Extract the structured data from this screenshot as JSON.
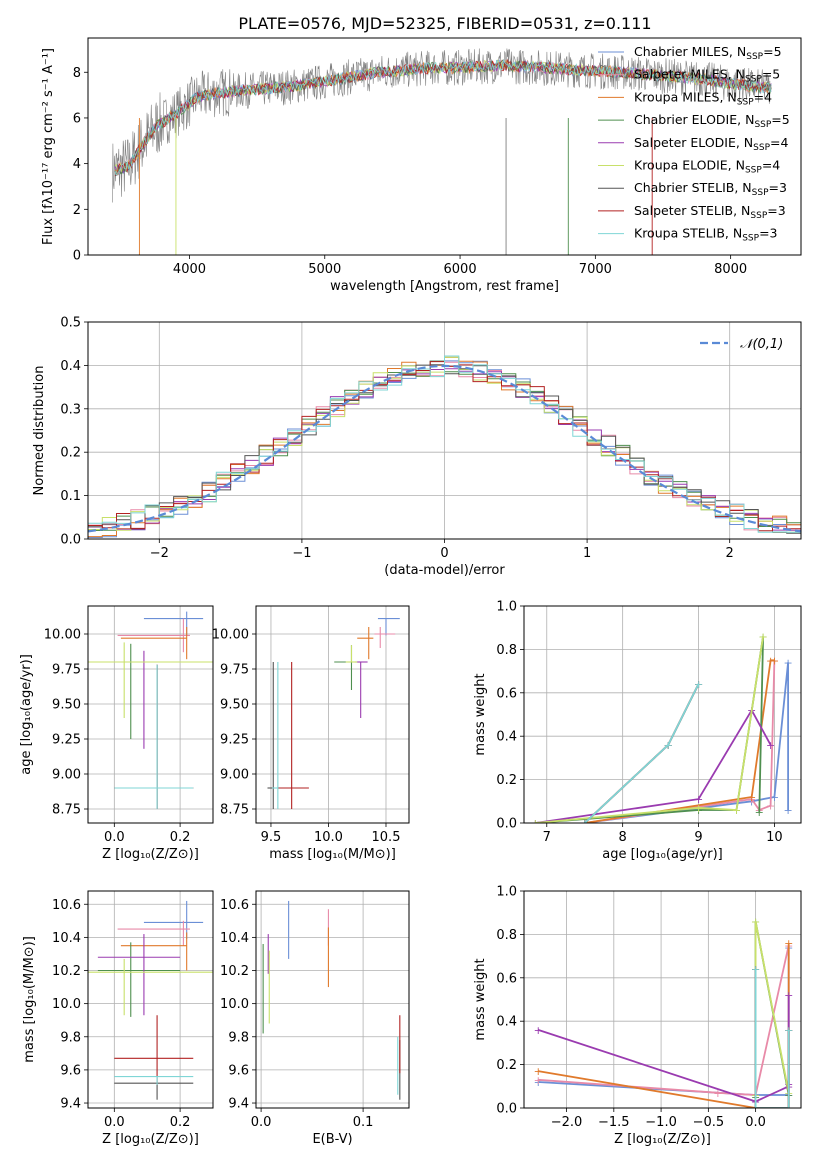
{
  "figure": {
    "title": "PLATE=0576, MJD=52325, FIBERID=0531, z=0.111"
  },
  "colors": {
    "Chabrier MILES": "#6b8fd6",
    "Salpeter MILES": "#e88aa8",
    "Kroupa MILES": "#e07a2c",
    "Chabrier ELODIE": "#4f8f4f",
    "Salpeter ELODIE": "#9a3bb0",
    "Kroupa ELODIE": "#c8e06a",
    "Chabrier STELIB": "#555555",
    "Salpeter STELIB": "#b22222",
    "Kroupa STELIB": "#7fd6d6",
    "data": "#808080",
    "normal_curve": "#5a8ad6"
  },
  "chart_data": [
    {
      "id": "spectrum",
      "type": "line",
      "title": "PLATE=0576, MJD=52325, FIBERID=0531, z=0.111",
      "xlabel": "wavelength [Angstrom, rest frame]",
      "ylabel": "Flux [fλ10⁻¹⁷ erg cm⁻² s⁻¹ A⁻¹]",
      "xlim": [
        3250,
        8520
      ],
      "ylim": [
        0,
        9.5
      ],
      "xticks": [
        4000,
        5000,
        6000,
        7000,
        8000
      ],
      "yticks": [
        0,
        2,
        4,
        6,
        8
      ],
      "grid": false,
      "legend_position": "top-right",
      "legend": [
        {
          "name": "Chabrier MILES",
          "nssp": "5"
        },
        {
          "name": "Salpeter MILES",
          "nssp": "5"
        },
        {
          "name": "Kroupa MILES",
          "nssp": "4"
        },
        {
          "name": "Chabrier ELODIE",
          "nssp": "5"
        },
        {
          "name": "Salpeter ELODIE",
          "nssp": "4"
        },
        {
          "name": "Kroupa ELODIE",
          "nssp": "4"
        },
        {
          "name": "Chabrier STELIB",
          "nssp": "3"
        },
        {
          "name": "Salpeter STELIB",
          "nssp": "3"
        },
        {
          "name": "Kroupa STELIB",
          "nssp": "3"
        }
      ],
      "continuum": {
        "x": [
          3450,
          3550,
          3650,
          3750,
          3850,
          3950,
          4050,
          4200,
          4400,
          4600,
          4800,
          5000,
          5200,
          5400,
          5600,
          5800,
          6000,
          6300,
          6600,
          6900,
          7200,
          7400,
          7600,
          7800,
          8000,
          8300
        ],
        "y": [
          3.7,
          3.9,
          4.8,
          5.6,
          6.0,
          6.4,
          6.9,
          7.1,
          7.2,
          7.3,
          7.4,
          7.6,
          7.8,
          8.0,
          8.1,
          8.2,
          8.2,
          8.3,
          8.2,
          8.1,
          8.0,
          7.9,
          7.8,
          7.7,
          7.5,
          7.3
        ]
      }
    },
    {
      "id": "residuals",
      "type": "histogram",
      "xlabel": "(data-model)/error",
      "ylabel": "Normed distribution",
      "xlim": [
        -2.5,
        2.5
      ],
      "ylim": [
        0,
        0.5
      ],
      "xticks": [
        -2,
        -1,
        0,
        1,
        2
      ],
      "yticks": [
        0.0,
        0.1,
        0.2,
        0.3,
        0.4,
        0.5
      ],
      "grid": true,
      "legend_position": "top-right",
      "curve_label": "𝒩(0,1)",
      "curve": {
        "name": "N(0,1)",
        "mean": 0,
        "sigma": 1
      }
    },
    {
      "id": "age-vs-Z",
      "type": "errorbar",
      "xlabel": "Z [log₁₀(Z/Z⊙)]",
      "ylabel": "age  [log₁₀(age/yr)]",
      "xlim": [
        -0.08,
        0.3
      ],
      "ylim": [
        8.65,
        10.2
      ],
      "xticks": [
        0.0,
        0.2
      ],
      "yticks": [
        8.75,
        9.0,
        9.25,
        9.5,
        9.75,
        10.0
      ],
      "grid": true,
      "points": [
        {
          "model": "Chabrier MILES",
          "x": 0.22,
          "y": 10.11,
          "xerr": [
            0.13,
            0.05
          ],
          "yerr": [
            0.12,
            0.05
          ]
        },
        {
          "model": "Salpeter MILES",
          "x": 0.21,
          "y": 9.99,
          "xerr": [
            0.2,
            0.02
          ],
          "yerr": [
            0.12,
            0.12
          ]
        },
        {
          "model": "Kroupa MILES",
          "x": 0.22,
          "y": 9.97,
          "xerr": [
            0.2,
            0.0
          ],
          "yerr": [
            0.15,
            0.08
          ]
        },
        {
          "model": "Chabrier ELODIE",
          "x": 0.05,
          "y": 9.8,
          "xerr": [
            0.1,
            0.15
          ],
          "yerr": [
            0.55,
            0.13
          ]
        },
        {
          "model": "Salpeter ELODIE",
          "x": 0.09,
          "y": 9.8,
          "xerr": [
            0.14,
            0.11
          ],
          "yerr": [
            0.62,
            0.08
          ]
        },
        {
          "model": "Kroupa ELODIE",
          "x": 0.03,
          "y": 9.8,
          "xerr": [
            0.14,
            0.27
          ],
          "yerr": [
            0.4,
            0.14
          ]
        },
        {
          "model": "Chabrier STELIB",
          "x": 0.13,
          "y": 8.9,
          "xerr": [
            0.13,
            0.11
          ],
          "yerr": [
            0.15,
            0.88
          ]
        },
        {
          "model": "Salpeter STELIB",
          "x": 0.13,
          "y": 8.9,
          "xerr": [
            0.13,
            0.11
          ],
          "yerr": [
            0.15,
            0.88
          ]
        },
        {
          "model": "Kroupa STELIB",
          "x": 0.13,
          "y": 8.9,
          "xerr": [
            0.13,
            0.11
          ],
          "yerr": [
            0.15,
            0.88
          ]
        }
      ]
    },
    {
      "id": "age-vs-mass",
      "type": "errorbar",
      "xlabel": "mass [log₁₀(M/M⊙)]",
      "ylabel": "",
      "xlim": [
        9.37,
        10.7
      ],
      "ylim": [
        8.65,
        10.2
      ],
      "xticks": [
        9.5,
        10.0,
        10.5
      ],
      "yticks": [
        8.75,
        9.0,
        9.25,
        9.5,
        9.75,
        10.0
      ],
      "grid": true,
      "points": [
        {
          "model": "Chabrier MILES",
          "x": 10.5,
          "y": 10.11,
          "xerr": [
            0.07,
            0.12
          ],
          "yerr": [
            0.12,
            0.0
          ]
        },
        {
          "model": "Salpeter MILES",
          "x": 10.45,
          "y": 10.0,
          "xerr": [
            0.05,
            0.13
          ],
          "yerr": [
            0.1,
            0.05
          ]
        },
        {
          "model": "Kroupa MILES",
          "x": 10.35,
          "y": 9.97,
          "xerr": [
            0.1,
            0.04
          ],
          "yerr": [
            0.15,
            0.08
          ]
        },
        {
          "model": "Chabrier ELODIE",
          "x": 10.2,
          "y": 9.8,
          "xerr": [
            0.15,
            0.07
          ],
          "yerr": [
            0.2,
            0.12
          ]
        },
        {
          "model": "Salpeter ELODIE",
          "x": 10.28,
          "y": 9.8,
          "xerr": [
            0.05,
            0.06
          ],
          "yerr": [
            0.4,
            0.0
          ]
        },
        {
          "model": "Kroupa ELODIE",
          "x": 10.2,
          "y": 9.8,
          "xerr": [
            0.05,
            0.05
          ],
          "yerr": [
            0.0,
            0.12
          ]
        },
        {
          "model": "Chabrier STELIB",
          "x": 9.52,
          "y": 8.9,
          "xerr": [
            0.05,
            0.0
          ],
          "yerr": [
            0.15,
            0.9
          ]
        },
        {
          "model": "Salpeter STELIB",
          "x": 9.68,
          "y": 8.9,
          "xerr": [
            0.15,
            0.15
          ],
          "yerr": [
            0.15,
            0.9
          ]
        },
        {
          "model": "Kroupa STELIB",
          "x": 9.56,
          "y": 8.9,
          "xerr": [
            0.05,
            0.0
          ],
          "yerr": [
            0.15,
            0.9
          ]
        }
      ]
    },
    {
      "id": "massweight-vs-age",
      "type": "line",
      "xlabel": "age  [log₁₀(age/yr)]",
      "ylabel": "mass weight",
      "xlim": [
        6.7,
        10.35
      ],
      "ylim": [
        0,
        1.0
      ],
      "xticks": [
        7,
        8,
        9,
        10
      ],
      "yticks": [
        0.0,
        0.2,
        0.4,
        0.6,
        0.8,
        1.0
      ],
      "grid": true,
      "series": [
        {
          "name": "Chabrier MILES",
          "x": [
            7.5,
            9.7,
            10.0,
            10.18,
            10.18
          ],
          "y": [
            0.0,
            0.1,
            0.12,
            0.74,
            0.06
          ]
        },
        {
          "name": "Salpeter MILES",
          "x": [
            7.5,
            9.7,
            9.8,
            9.95,
            10.0
          ],
          "y": [
            0.0,
            0.11,
            0.06,
            0.08,
            0.75
          ]
        },
        {
          "name": "Kroupa MILES",
          "x": [
            7.5,
            9.7,
            9.95,
            10.0
          ],
          "y": [
            0.0,
            0.12,
            0.75,
            0.75
          ]
        },
        {
          "name": "Chabrier ELODIE",
          "x": [
            6.85,
            9.0,
            9.5,
            9.85,
            9.8
          ],
          "y": [
            0.0,
            0.06,
            0.06,
            0.86,
            0.05
          ]
        },
        {
          "name": "Salpeter ELODIE",
          "x": [
            6.85,
            9.0,
            9.7,
            9.95
          ],
          "y": [
            0.0,
            0.11,
            0.52,
            0.36
          ]
        },
        {
          "name": "Kroupa ELODIE",
          "x": [
            6.85,
            9.0,
            9.5,
            9.85
          ],
          "y": [
            0.0,
            0.07,
            0.06,
            0.86
          ]
        },
        {
          "name": "Chabrier STELIB",
          "x": [
            7.5,
            8.6,
            9.0
          ],
          "y": [
            0.0,
            0.36,
            0.64
          ]
        },
        {
          "name": "Salpeter STELIB",
          "x": [
            7.5,
            8.6,
            9.0
          ],
          "y": [
            0.0,
            0.36,
            0.64
          ]
        },
        {
          "name": "Kroupa STELIB",
          "x": [
            7.5,
            8.6,
            9.0
          ],
          "y": [
            0.0,
            0.36,
            0.64
          ]
        }
      ]
    },
    {
      "id": "mass-vs-Z",
      "type": "errorbar",
      "xlabel": "Z [log₁₀(Z/Z⊙)]",
      "ylabel": "mass [log₁₀(M/M⊙)]",
      "xlim": [
        -0.08,
        0.3
      ],
      "ylim": [
        9.37,
        10.68
      ],
      "xticks": [
        0.0,
        0.2
      ],
      "yticks": [
        9.4,
        9.6,
        9.8,
        10.0,
        10.2,
        10.4,
        10.6
      ],
      "grid": true,
      "points": [
        {
          "model": "Chabrier MILES",
          "x": 0.22,
          "y": 10.49,
          "xerr": [
            0.13,
            0.05
          ],
          "yerr": [
            0.1,
            0.13
          ]
        },
        {
          "model": "Salpeter MILES",
          "x": 0.21,
          "y": 10.45,
          "xerr": [
            0.2,
            0.02
          ],
          "yerr": [
            0.1,
            0.05
          ]
        },
        {
          "model": "Kroupa MILES",
          "x": 0.22,
          "y": 10.35,
          "xerr": [
            0.2,
            0.0
          ],
          "yerr": [
            0.15,
            0.08
          ]
        },
        {
          "model": "Chabrier ELODIE",
          "x": 0.05,
          "y": 10.2,
          "xerr": [
            0.1,
            0.15
          ],
          "yerr": [
            0.28,
            0.17
          ]
        },
        {
          "model": "Salpeter ELODIE",
          "x": 0.09,
          "y": 10.28,
          "xerr": [
            0.14,
            0.11
          ],
          "yerr": [
            0.35,
            0.14
          ]
        },
        {
          "model": "Kroupa ELODIE",
          "x": 0.03,
          "y": 10.19,
          "xerr": [
            0.14,
            0.27
          ],
          "yerr": [
            0.26,
            0.08
          ]
        },
        {
          "model": "Chabrier STELIB",
          "x": 0.13,
          "y": 9.52,
          "xerr": [
            0.13,
            0.11
          ],
          "yerr": [
            0.1,
            0.0
          ]
        },
        {
          "model": "Salpeter STELIB",
          "x": 0.13,
          "y": 9.67,
          "xerr": [
            0.13,
            0.11
          ],
          "yerr": [
            0.15,
            0.26
          ]
        },
        {
          "model": "Kroupa STELIB",
          "x": 0.13,
          "y": 9.56,
          "xerr": [
            0.13,
            0.11
          ],
          "yerr": [
            0.05,
            0.0
          ]
        }
      ]
    },
    {
      "id": "ebv",
      "type": "errorbar",
      "xlabel": "E(B-V)",
      "ylabel": "",
      "xlim": [
        -0.005,
        0.145
      ],
      "ylim": [
        9.37,
        10.68
      ],
      "xticks": [
        0.0,
        0.1
      ],
      "yticks": [
        9.4,
        9.6,
        9.8,
        10.0,
        10.2,
        10.4,
        10.6
      ],
      "grid": true,
      "points": [
        {
          "model": "Chabrier MILES",
          "x": 0.027,
          "y": 10.45,
          "yerr": [
            0.18,
            0.17
          ]
        },
        {
          "model": "Salpeter MILES",
          "x": 0.066,
          "y": 10.45,
          "yerr": [
            0.1,
            0.12
          ]
        },
        {
          "model": "Kroupa MILES",
          "x": 0.066,
          "y": 10.28,
          "yerr": [
            0.18,
            0.18
          ]
        },
        {
          "model": "Chabrier ELODIE",
          "x": 0.002,
          "y": 10.1,
          "yerr": [
            0.28,
            0.26
          ]
        },
        {
          "model": "Salpeter ELODIE",
          "x": 0.007,
          "y": 10.3,
          "yerr": [
            0.12,
            0.12
          ]
        },
        {
          "model": "Kroupa ELODIE",
          "x": 0.008,
          "y": 10.1,
          "yerr": [
            0.22,
            0.22
          ]
        },
        {
          "model": "Chabrier STELIB",
          "x": 0.136,
          "y": 9.62,
          "yerr": [
            0.2,
            0.16
          ]
        },
        {
          "model": "Salpeter STELIB",
          "x": 0.136,
          "y": 9.7,
          "yerr": [
            0.12,
            0.23
          ]
        },
        {
          "model": "Kroupa STELIB",
          "x": 0.134,
          "y": 9.6,
          "yerr": [
            0.15,
            0.2
          ]
        }
      ]
    },
    {
      "id": "massweight-vs-Z",
      "type": "line",
      "xlabel": "Z [log₁₀(Z/Z⊙)]",
      "ylabel": "mass weight",
      "xlim": [
        -2.45,
        0.48
      ],
      "ylim": [
        0,
        1.0
      ],
      "xticks": [
        -2.0,
        -1.5,
        -1.0,
        -0.5,
        0.0
      ],
      "yticks": [
        0.0,
        0.2,
        0.4,
        0.6,
        0.8,
        1.0
      ],
      "grid": true,
      "series": [
        {
          "name": "Chabrier MILES",
          "x": [
            -2.3,
            0.0,
            0.35,
            0.35
          ],
          "y": [
            0.12,
            0.06,
            0.06,
            0.74
          ]
        },
        {
          "name": "Salpeter MILES",
          "x": [
            -2.3,
            -0.4,
            0.0,
            0.35
          ],
          "y": [
            0.13,
            0.07,
            0.06,
            0.75
          ]
        },
        {
          "name": "Kroupa MILES",
          "x": [
            -2.3,
            0.0,
            0.35,
            0.35
          ],
          "y": [
            0.17,
            0.0,
            0.0,
            0.76
          ]
        },
        {
          "name": "Chabrier ELODIE",
          "x": [
            0.0,
            0.0,
            0.35
          ],
          "y": [
            0.05,
            0.86,
            0.06
          ]
        },
        {
          "name": "Salpeter ELODIE",
          "x": [
            -2.3,
            0.0,
            0.35,
            0.35,
            0.35
          ],
          "y": [
            0.36,
            0.03,
            0.1,
            0.52,
            0.11
          ]
        },
        {
          "name": "Kroupa ELODIE",
          "x": [
            0.0,
            0.0,
            0.35
          ],
          "y": [
            0.06,
            0.86,
            0.07
          ]
        },
        {
          "name": "Chabrier STELIB",
          "x": [
            0.0,
            0.0,
            0.35,
            0.35
          ],
          "y": [
            0.64,
            0.0,
            0.0,
            0.36
          ]
        },
        {
          "name": "Salpeter STELIB",
          "x": [
            0.0,
            0.0,
            0.35,
            0.35
          ],
          "y": [
            0.64,
            0.0,
            0.0,
            0.36
          ]
        },
        {
          "name": "Kroupa STELIB",
          "x": [
            0.0,
            0.0,
            0.35,
            0.35
          ],
          "y": [
            0.64,
            0.0,
            0.0,
            0.36
          ]
        }
      ]
    }
  ]
}
